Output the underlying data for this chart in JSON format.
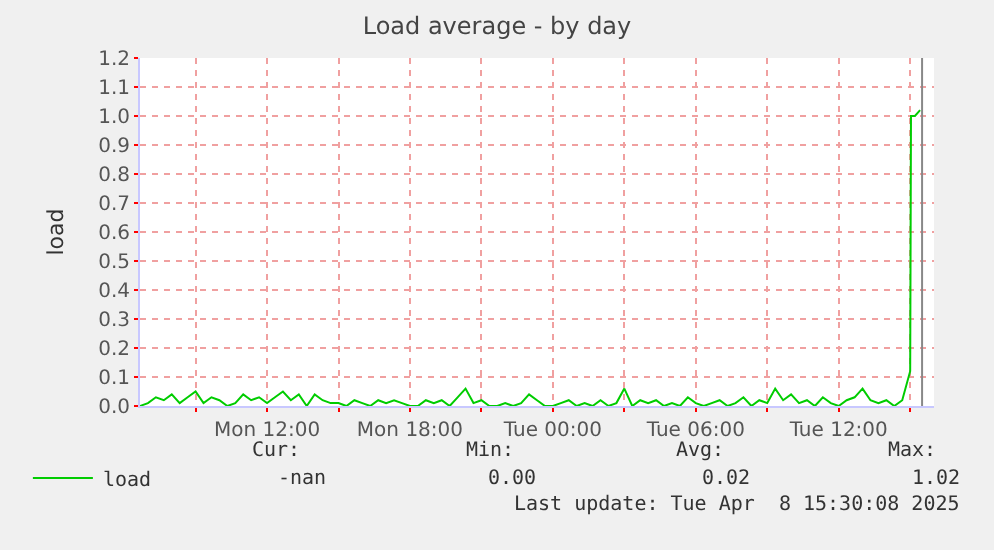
{
  "chart_data": {
    "type": "line",
    "title": "Load average - by day",
    "ylabel": "load",
    "x": [
      "2025-04-07T06:40",
      "2025-04-07T07:00",
      "2025-04-07T07:20",
      "2025-04-07T07:40",
      "2025-04-07T08:00",
      "2025-04-07T08:20",
      "2025-04-07T08:40",
      "2025-04-07T09:00",
      "2025-04-07T09:20",
      "2025-04-07T09:40",
      "2025-04-07T10:00",
      "2025-04-07T10:20",
      "2025-04-07T10:40",
      "2025-04-07T11:00",
      "2025-04-07T11:20",
      "2025-04-07T11:40",
      "2025-04-07T12:00",
      "2025-04-07T12:20",
      "2025-04-07T12:40",
      "2025-04-07T13:00",
      "2025-04-07T13:20",
      "2025-04-07T13:40",
      "2025-04-07T14:00",
      "2025-04-07T14:20",
      "2025-04-07T14:40",
      "2025-04-07T15:00",
      "2025-04-07T15:20",
      "2025-04-07T15:40",
      "2025-04-07T16:00",
      "2025-04-07T16:20",
      "2025-04-07T16:40",
      "2025-04-07T17:00",
      "2025-04-07T17:20",
      "2025-04-07T17:40",
      "2025-04-07T18:00",
      "2025-04-07T18:20",
      "2025-04-07T18:40",
      "2025-04-07T19:00",
      "2025-04-07T19:20",
      "2025-04-07T19:40",
      "2025-04-07T20:00",
      "2025-04-07T20:20",
      "2025-04-07T20:40",
      "2025-04-07T21:00",
      "2025-04-07T21:20",
      "2025-04-07T21:40",
      "2025-04-07T22:00",
      "2025-04-07T22:20",
      "2025-04-07T22:40",
      "2025-04-07T23:00",
      "2025-04-07T23:20",
      "2025-04-07T23:40",
      "2025-04-08T00:00",
      "2025-04-08T00:20",
      "2025-04-08T00:40",
      "2025-04-08T01:00",
      "2025-04-08T01:20",
      "2025-04-08T01:40",
      "2025-04-08T02:00",
      "2025-04-08T02:20",
      "2025-04-08T02:40",
      "2025-04-08T03:00",
      "2025-04-08T03:20",
      "2025-04-08T03:40",
      "2025-04-08T04:00",
      "2025-04-08T04:20",
      "2025-04-08T04:40",
      "2025-04-08T05:00",
      "2025-04-08T05:20",
      "2025-04-08T05:40",
      "2025-04-08T06:00",
      "2025-04-08T06:20",
      "2025-04-08T06:40",
      "2025-04-08T07:00",
      "2025-04-08T07:20",
      "2025-04-08T07:40",
      "2025-04-08T08:00",
      "2025-04-08T08:20",
      "2025-04-08T08:40",
      "2025-04-08T09:00",
      "2025-04-08T09:20",
      "2025-04-08T09:40",
      "2025-04-08T10:00",
      "2025-04-08T10:20",
      "2025-04-08T10:40",
      "2025-04-08T11:00",
      "2025-04-08T11:20",
      "2025-04-08T11:40",
      "2025-04-08T12:00",
      "2025-04-08T12:20",
      "2025-04-08T12:40",
      "2025-04-08T13:00",
      "2025-04-08T13:20",
      "2025-04-08T13:40",
      "2025-04-08T14:00",
      "2025-04-08T14:20",
      "2025-04-08T14:40",
      "2025-04-08T15:00",
      "2025-04-08T15:02",
      "2025-04-08T15:12",
      "2025-04-08T15:25"
    ],
    "series": [
      {
        "name": "load",
        "color": "#00cc00",
        "values": [
          0.0,
          0.01,
          0.03,
          0.02,
          0.04,
          0.01,
          0.03,
          0.05,
          0.01,
          0.03,
          0.02,
          0.0,
          0.01,
          0.04,
          0.02,
          0.03,
          0.01,
          0.03,
          0.05,
          0.02,
          0.04,
          0.0,
          0.04,
          0.02,
          0.01,
          0.01,
          0.0,
          0.02,
          0.01,
          0.0,
          0.02,
          0.01,
          0.02,
          0.01,
          0.0,
          0.0,
          0.02,
          0.01,
          0.02,
          0.0,
          0.03,
          0.06,
          0.01,
          0.02,
          0.0,
          0.0,
          0.01,
          0.0,
          0.01,
          0.04,
          0.02,
          0.0,
          0.0,
          0.01,
          0.02,
          0.0,
          0.01,
          0.0,
          0.02,
          0.0,
          0.01,
          0.06,
          0.0,
          0.02,
          0.01,
          0.02,
          0.0,
          0.01,
          0.0,
          0.03,
          0.01,
          0.0,
          0.01,
          0.02,
          0.0,
          0.01,
          0.03,
          0.0,
          0.02,
          0.01,
          0.06,
          0.02,
          0.04,
          0.01,
          0.02,
          0.0,
          0.03,
          0.01,
          0.0,
          0.02,
          0.03,
          0.06,
          0.02,
          0.01,
          0.02,
          0.0,
          0.02,
          0.12,
          1.0,
          1.0,
          1.02
        ]
      }
    ],
    "xlim": [
      "2025-04-07T06:40",
      "2025-04-08T16:00"
    ],
    "xticks": [
      {
        "value": "2025-04-07T09:00",
        "label": null
      },
      {
        "value": "2025-04-07T12:00",
        "label": "Mon 12:00"
      },
      {
        "value": "2025-04-07T15:00",
        "label": null
      },
      {
        "value": "2025-04-07T18:00",
        "label": "Mon 18:00"
      },
      {
        "value": "2025-04-07T21:00",
        "label": null
      },
      {
        "value": "2025-04-08T00:00",
        "label": "Tue 00:00"
      },
      {
        "value": "2025-04-08T03:00",
        "label": null
      },
      {
        "value": "2025-04-08T06:00",
        "label": "Tue 06:00"
      },
      {
        "value": "2025-04-08T09:00",
        "label": null
      },
      {
        "value": "2025-04-08T12:00",
        "label": "Tue 12:00"
      },
      {
        "value": "2025-04-08T15:00",
        "label": null
      }
    ],
    "ylim": [
      0,
      1.2
    ],
    "yticks": [
      {
        "value": 0,
        "label": "0.0"
      },
      0.1,
      0.2,
      0.3,
      0.4,
      0.5,
      0.6,
      0.7,
      0.8,
      0.9,
      {
        "value": 1,
        "label": "1.0"
      },
      1.1,
      1.2
    ],
    "ref_lines": [
      {
        "axis": "x",
        "value": "2025-04-08T15:30",
        "color": "#888888"
      }
    ],
    "grid": true,
    "legend": "bottom left",
    "marker": "none",
    "line_style": "solid",
    "annotations": [
      "Cur:",
      "Min:",
      "Avg:",
      "Max:",
      "-nan",
      "0.00",
      "0.02",
      "1.02",
      "Last update: Tue Apr  8 15:30:08 2025"
    ]
  }
}
